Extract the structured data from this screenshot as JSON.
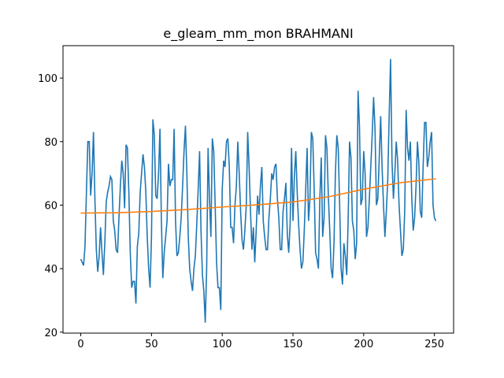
{
  "chart_data": {
    "type": "line",
    "title": "e_gleam_mm_mon BRAHMANI",
    "x": [
      0,
      1,
      2,
      3,
      4,
      5,
      6,
      7,
      8,
      9,
      10,
      11,
      12,
      13,
      14,
      15,
      16,
      17,
      18,
      19,
      20,
      21,
      22,
      23,
      24,
      25,
      26,
      27,
      28,
      29,
      30,
      31,
      32,
      33,
      34,
      35,
      36,
      37,
      38,
      39,
      40,
      41,
      42,
      43,
      44,
      45,
      46,
      47,
      48,
      49,
      50,
      51,
      52,
      53,
      54,
      55,
      56,
      57,
      58,
      59,
      60,
      61,
      62,
      63,
      64,
      65,
      66,
      67,
      68,
      69,
      70,
      71,
      72,
      73,
      74,
      75,
      76,
      77,
      78,
      79,
      80,
      81,
      82,
      83,
      84,
      85,
      86,
      87,
      88,
      89,
      90,
      91,
      92,
      93,
      94,
      95,
      96,
      97,
      98,
      99,
      100,
      101,
      102,
      103,
      104,
      105,
      106,
      107,
      108,
      109,
      110,
      111,
      112,
      113,
      114,
      115,
      116,
      117,
      118,
      119,
      120,
      121,
      122,
      123,
      124,
      125,
      126,
      127,
      128,
      129,
      130,
      131,
      132,
      133,
      134,
      135,
      136,
      137,
      138,
      139,
      140,
      141,
      142,
      143,
      144,
      145,
      146,
      147,
      148,
      149,
      150,
      151,
      152,
      153,
      154,
      155,
      156,
      157,
      158,
      159,
      160,
      161,
      162,
      163,
      164,
      165,
      166,
      167,
      168,
      169,
      170,
      171,
      172,
      173,
      174,
      175,
      176,
      177,
      178,
      179,
      180,
      181,
      182,
      183,
      184,
      185,
      186,
      187,
      188,
      189,
      190,
      191,
      192,
      193,
      194,
      195,
      196,
      197,
      198,
      199,
      200,
      201,
      202,
      203,
      204,
      205,
      206,
      207,
      208,
      209,
      210,
      211,
      212,
      213,
      214,
      215,
      216,
      217,
      218,
      219,
      220,
      221,
      222,
      223,
      224,
      225,
      226,
      227,
      228,
      229,
      230,
      231,
      232,
      233,
      234,
      235,
      236,
      237,
      238,
      239,
      240,
      241,
      242,
      243,
      244,
      245,
      246,
      247,
      248,
      249,
      250,
      251
    ],
    "series": [
      {
        "color": "#1f77b4",
        "values": [
          43,
          42,
          41,
          47,
          64,
          80,
          80,
          63,
          70,
          83,
          62,
          46,
          39,
          44,
          53,
          45,
          38,
          48,
          61,
          64,
          66,
          69,
          68,
          55,
          52,
          46,
          45,
          56,
          66,
          74,
          70,
          59,
          79,
          78,
          64,
          45,
          34,
          36,
          36,
          29,
          47,
          51,
          64,
          70,
          76,
          72,
          64,
          50,
          40,
          34,
          50,
          87,
          82,
          63,
          62,
          70,
          84,
          55,
          37,
          45,
          50,
          55,
          73,
          66,
          68,
          68,
          84,
          55,
          44,
          45,
          50,
          56,
          66,
          77,
          85,
          70,
          50,
          40,
          36,
          33,
          40,
          44,
          54,
          65,
          77,
          52,
          38,
          33,
          23,
          40,
          78,
          62,
          50,
          81,
          77,
          60,
          42,
          34,
          34,
          27,
          65,
          74,
          72,
          80,
          81,
          72,
          53,
          53,
          48,
          60,
          66,
          80,
          70,
          58,
          49,
          46,
          52,
          60,
          83,
          72,
          58,
          46,
          53,
          42,
          52,
          63,
          57,
          66,
          72,
          55,
          50,
          46,
          46,
          56,
          62,
          70,
          68,
          72,
          73,
          62,
          56,
          46,
          46,
          58,
          62,
          67,
          51,
          45,
          54,
          78,
          55,
          69,
          77,
          64,
          54,
          46,
          40,
          42,
          52,
          65,
          78,
          55,
          62,
          83,
          81,
          65,
          45,
          43,
          40,
          62,
          75,
          50,
          56,
          82,
          78,
          63,
          52,
          40,
          37,
          48,
          70,
          82,
          78,
          60,
          40,
          35,
          48,
          44,
          38,
          55,
          80,
          75,
          55,
          52,
          43,
          48,
          96,
          85,
          60,
          62,
          77,
          70,
          50,
          53,
          62,
          72,
          82,
          94,
          84,
          60,
          62,
          75,
          88,
          72,
          60,
          50,
          58,
          68,
          88,
          106,
          74,
          62,
          70,
          80,
          74,
          60,
          52,
          44,
          46,
          58,
          90,
          78,
          74,
          80,
          62,
          52,
          56,
          66,
          80,
          73,
          58,
          56,
          72,
          86,
          86,
          72,
          75,
          80,
          83,
          60,
          56,
          55
        ]
      },
      {
        "color": "#ff7f0e",
        "x": [
          0,
          25,
          50,
          75,
          100,
          125,
          150,
          175,
          200,
          225,
          251
        ],
        "values": [
          57.5,
          57.6,
          58.0,
          58.6,
          59.4,
          60.1,
          61,
          62.6,
          65,
          67,
          68.3
        ]
      }
    ],
    "xlim": [
      -12.55,
      263.55
    ],
    "ylim": [
      19.7,
      110.2
    ],
    "xticks": [
      0,
      50,
      100,
      150,
      200,
      250
    ],
    "yticks": [
      20,
      40,
      60,
      80,
      100
    ]
  }
}
